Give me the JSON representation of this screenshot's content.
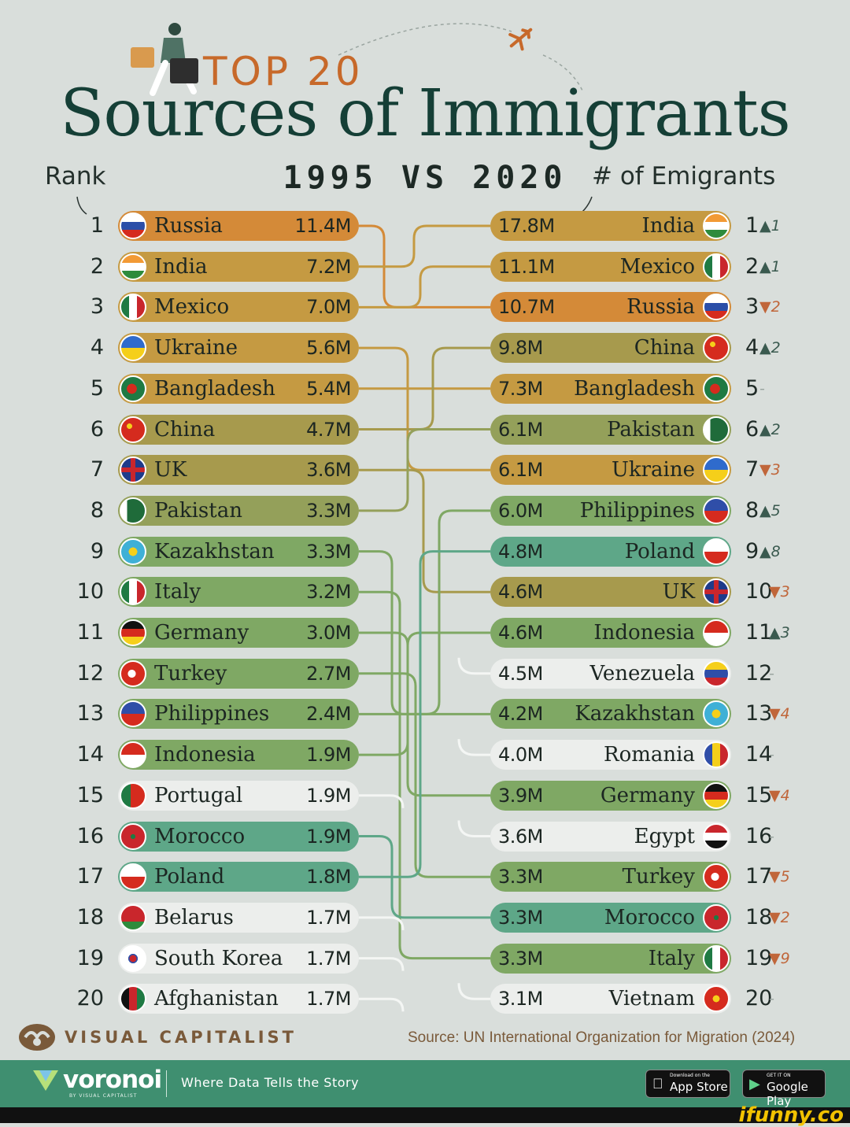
{
  "header": {
    "kicker": "TOP 20",
    "title": "Sources of Immigrants",
    "rank_label": "Rank",
    "years": "1995 VS 2020",
    "emigrants_label": "# of Emigrants"
  },
  "colors": {
    "background": "#d9dedb",
    "orange": "#d48a38",
    "gold": "#c59a42",
    "olive": "#a79a4d",
    "olivegreen": "#94a05a",
    "green": "#7fa864",
    "teal": "#5ea788",
    "light": "#eceeec",
    "title": "#153f36",
    "accent": "#c7692a",
    "up": "#3a5a4f",
    "down": "#c0663a"
  },
  "chart_data": {
    "type": "table",
    "title": "Sources of Immigrants",
    "subtitle": "TOP 20",
    "columns": [
      "1995",
      "2020"
    ],
    "value_label": "# of Emigrants",
    "y1995": [
      {
        "rank": "1",
        "country": "Russia",
        "value": "11.4M",
        "emigrants_m": 11.4,
        "color": "orange",
        "flag": "russia-flag"
      },
      {
        "rank": "2",
        "country": "India",
        "value": "7.2M",
        "emigrants_m": 7.2,
        "color": "gold",
        "flag": "india-flag"
      },
      {
        "rank": "3",
        "country": "Mexico",
        "value": "7.0M",
        "emigrants_m": 7.0,
        "color": "gold",
        "flag": "mexico-flag"
      },
      {
        "rank": "4",
        "country": "Ukraine",
        "value": "5.6M",
        "emigrants_m": 5.6,
        "color": "gold",
        "flag": "ukraine-flag"
      },
      {
        "rank": "5",
        "country": "Bangladesh",
        "value": "5.4M",
        "emigrants_m": 5.4,
        "color": "gold",
        "flag": "bangladesh-flag"
      },
      {
        "rank": "6",
        "country": "China",
        "value": "4.7M",
        "emigrants_m": 4.7,
        "color": "olive",
        "flag": "china-flag"
      },
      {
        "rank": "7",
        "country": "UK",
        "value": "3.6M",
        "emigrants_m": 3.6,
        "color": "olive",
        "flag": "uk-flag"
      },
      {
        "rank": "8",
        "country": "Pakistan",
        "value": "3.3M",
        "emigrants_m": 3.3,
        "color": "olivegreen",
        "flag": "pakistan-flag"
      },
      {
        "rank": "9",
        "country": "Kazakhstan",
        "value": "3.3M",
        "emigrants_m": 3.3,
        "color": "green",
        "flag": "kazakhstan-flag"
      },
      {
        "rank": "10",
        "country": "Italy",
        "value": "3.2M",
        "emigrants_m": 3.2,
        "color": "green",
        "flag": "italy-flag"
      },
      {
        "rank": "11",
        "country": "Germany",
        "value": "3.0M",
        "emigrants_m": 3.0,
        "color": "green",
        "flag": "germany-flag"
      },
      {
        "rank": "12",
        "country": "Turkey",
        "value": "2.7M",
        "emigrants_m": 2.7,
        "color": "green",
        "flag": "turkey-flag"
      },
      {
        "rank": "13",
        "country": "Philippines",
        "value": "2.4M",
        "emigrants_m": 2.4,
        "color": "green",
        "flag": "philippines-flag"
      },
      {
        "rank": "14",
        "country": "Indonesia",
        "value": "1.9M",
        "emigrants_m": 1.9,
        "color": "green",
        "flag": "indonesia-flag"
      },
      {
        "rank": "15",
        "country": "Portugal",
        "value": "1.9M",
        "emigrants_m": 1.9,
        "color": "light",
        "flag": "portugal-flag"
      },
      {
        "rank": "16",
        "country": "Morocco",
        "value": "1.9M",
        "emigrants_m": 1.9,
        "color": "teal",
        "flag": "morocco-flag"
      },
      {
        "rank": "17",
        "country": "Poland",
        "value": "1.8M",
        "emigrants_m": 1.8,
        "color": "teal",
        "flag": "poland-flag"
      },
      {
        "rank": "18",
        "country": "Belarus",
        "value": "1.7M",
        "emigrants_m": 1.7,
        "color": "light",
        "flag": "belarus-flag"
      },
      {
        "rank": "19",
        "country": "South Korea",
        "value": "1.7M",
        "emigrants_m": 1.7,
        "color": "light",
        "flag": "south-korea-flag"
      },
      {
        "rank": "20",
        "country": "Afghanistan",
        "value": "1.7M",
        "emigrants_m": 1.7,
        "color": "light",
        "flag": "afghanistan-flag"
      }
    ],
    "y2020": [
      {
        "rank": "1",
        "country": "India",
        "value": "17.8M",
        "emigrants_m": 17.8,
        "change": "▲1",
        "dir": "up",
        "color": "gold",
        "flag": "india-flag"
      },
      {
        "rank": "2",
        "country": "Mexico",
        "value": "11.1M",
        "emigrants_m": 11.1,
        "change": "▲1",
        "dir": "up",
        "color": "gold",
        "flag": "mexico-flag"
      },
      {
        "rank": "3",
        "country": "Russia",
        "value": "10.7M",
        "emigrants_m": 10.7,
        "change": "▼2",
        "dir": "down",
        "color": "orange",
        "flag": "russia-flag"
      },
      {
        "rank": "4",
        "country": "China",
        "value": "9.8M",
        "emigrants_m": 9.8,
        "change": "▲2",
        "dir": "up",
        "color": "olive",
        "flag": "china-flag"
      },
      {
        "rank": "5",
        "country": "Bangladesh",
        "value": "7.3M",
        "emigrants_m": 7.3,
        "change": "-",
        "dir": "same",
        "color": "gold",
        "flag": "bangladesh-flag"
      },
      {
        "rank": "6",
        "country": "Pakistan",
        "value": "6.1M",
        "emigrants_m": 6.1,
        "change": "▲2",
        "dir": "up",
        "color": "olivegreen",
        "flag": "pakistan-flag"
      },
      {
        "rank": "7",
        "country": "Ukraine",
        "value": "6.1M",
        "emigrants_m": 6.1,
        "change": "▼3",
        "dir": "down",
        "color": "gold",
        "flag": "ukraine-flag"
      },
      {
        "rank": "8",
        "country": "Philippines",
        "value": "6.0M",
        "emigrants_m": 6.0,
        "change": "▲5",
        "dir": "up",
        "color": "green",
        "flag": "philippines-flag"
      },
      {
        "rank": "9",
        "country": "Poland",
        "value": "4.8M",
        "emigrants_m": 4.8,
        "change": "▲8",
        "dir": "up",
        "color": "teal",
        "flag": "poland-flag"
      },
      {
        "rank": "10",
        "country": "UK",
        "value": "4.6M",
        "emigrants_m": 4.6,
        "change": "▼3",
        "dir": "down",
        "color": "olive",
        "flag": "uk-flag"
      },
      {
        "rank": "11",
        "country": "Indonesia",
        "value": "4.6M",
        "emigrants_m": 4.6,
        "change": "▲3",
        "dir": "up",
        "color": "green",
        "flag": "indonesia-flag"
      },
      {
        "rank": "12",
        "country": "Venezuela",
        "value": "4.5M",
        "emigrants_m": 4.5,
        "change": "-",
        "dir": "same",
        "color": "light",
        "flag": "venezuela-flag"
      },
      {
        "rank": "13",
        "country": "Kazakhstan",
        "value": "4.2M",
        "emigrants_m": 4.2,
        "change": "▼4",
        "dir": "down",
        "color": "green",
        "flag": "kazakhstan-flag"
      },
      {
        "rank": "14",
        "country": "Romania",
        "value": "4.0M",
        "emigrants_m": 4.0,
        "change": "-",
        "dir": "same",
        "color": "light",
        "flag": "romania-flag"
      },
      {
        "rank": "15",
        "country": "Germany",
        "value": "3.9M",
        "emigrants_m": 3.9,
        "change": "▼4",
        "dir": "down",
        "color": "green",
        "flag": "germany-flag"
      },
      {
        "rank": "16",
        "country": "Egypt",
        "value": "3.6M",
        "emigrants_m": 3.6,
        "change": "-",
        "dir": "same",
        "color": "light",
        "flag": "egypt-flag"
      },
      {
        "rank": "17",
        "country": "Turkey",
        "value": "3.3M",
        "emigrants_m": 3.3,
        "change": "▼5",
        "dir": "down",
        "color": "green",
        "flag": "turkey-flag"
      },
      {
        "rank": "18",
        "country": "Morocco",
        "value": "3.3M",
        "emigrants_m": 3.3,
        "change": "▼2",
        "dir": "down",
        "color": "teal",
        "flag": "morocco-flag"
      },
      {
        "rank": "19",
        "country": "Italy",
        "value": "3.3M",
        "emigrants_m": 3.3,
        "change": "▼9",
        "dir": "down",
        "color": "green",
        "flag": "italy-flag"
      },
      {
        "rank": "20",
        "country": "Vietnam",
        "value": "3.1M",
        "emigrants_m": 3.1,
        "change": "-",
        "dir": "same",
        "color": "light",
        "flag": "vietnam-flag"
      }
    ]
  },
  "footer": {
    "brand": "VISUAL CAPITALIST",
    "source": "Source: UN International Organization for Migration (2024)",
    "app_name": "voronoi",
    "app_sub": "BY VISUAL CAPITALIST",
    "tagline": "Where Data Tells the Story",
    "appstore_small": "Download on the",
    "appstore_label": "App Store",
    "googleplay_small": "GET IT ON",
    "googleplay_label": "Google Play",
    "watermark": "ifunny.co"
  }
}
